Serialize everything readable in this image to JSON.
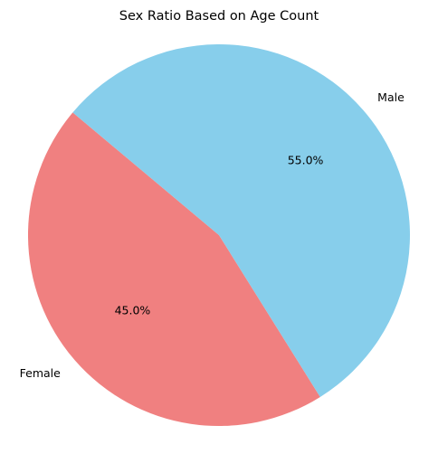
{
  "chart_data": {
    "type": "pie",
    "title": "Sex Ratio Based on Age Count",
    "categories": [
      "Female",
      "Male"
    ],
    "values": [
      45.0,
      55.0
    ],
    "percent_labels": [
      "45.0%",
      "55.0%"
    ],
    "colors": [
      "#F08080",
      "#87CEEB"
    ],
    "legend": false
  }
}
